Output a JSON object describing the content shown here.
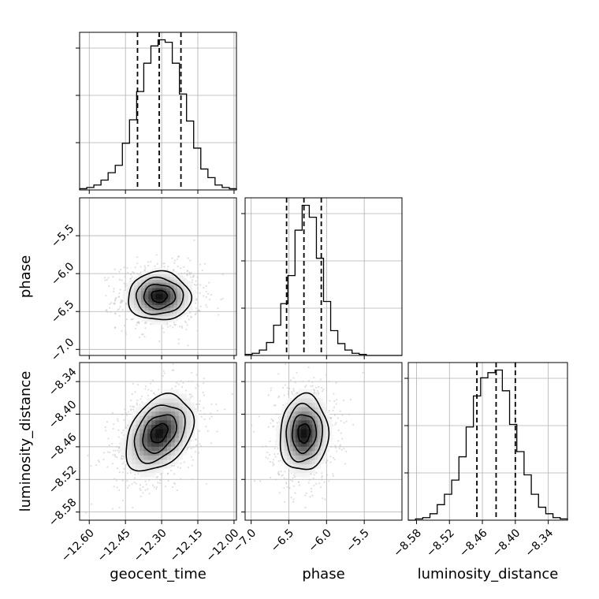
{
  "chart_data": {
    "type": "corner",
    "parameters": [
      "geocent_time",
      "phase",
      "luminosity_distance"
    ],
    "labels": {
      "geocent_time": "geocent_time",
      "phase": "phase",
      "luminosity_distance": "luminosity_distance"
    },
    "ranges": {
      "geocent_time": [
        -12.64,
        -11.99
      ],
      "phase": [
        -7.08,
        -5.0
      ],
      "luminosity_distance": [
        -8.595,
        -8.305
      ]
    },
    "ticks": {
      "geocent_time": [
        "-12.60",
        "-12.45",
        "-12.30",
        "-12.15",
        "-12.00"
      ],
      "phase": [
        "-7.0",
        "-6.5",
        "-6.0",
        "-5.5"
      ],
      "luminosity_distance": [
        "-8.58",
        "-8.52",
        "-8.46",
        "-8.40",
        "-8.34"
      ]
    },
    "quantiles": {
      "geocent_time": [
        -12.4,
        -12.31,
        -12.22
      ],
      "phase": [
        -6.53,
        -6.3,
        -6.07
      ],
      "luminosity_distance": [
        -8.47,
        -8.435,
        -8.4
      ]
    },
    "histograms": {
      "geocent_time": [
        1,
        2,
        4,
        8,
        14,
        20,
        38,
        57,
        80,
        103,
        117,
        122,
        120,
        103,
        78,
        56,
        34,
        17,
        10,
        4,
        2,
        1
      ],
      "phase": [
        1,
        2,
        5,
        12,
        28,
        48,
        74,
        116,
        139,
        128,
        90,
        50,
        23,
        11,
        5,
        2,
        1,
        0,
        0,
        0,
        0,
        0
      ],
      "luminosity_distance": [
        0,
        1,
        2,
        5,
        12,
        20,
        31,
        49,
        72,
        96,
        110,
        114,
        116,
        100,
        74,
        53,
        35,
        20,
        10,
        5,
        2,
        1
      ]
    },
    "contours": {
      "phase|geocent_time": {
        "center": [
          -12.31,
          -6.3
        ],
        "sigma": [
          0.065,
          0.16
        ],
        "rho": 0,
        "levels": [
          0.5,
          1.0,
          1.5,
          2.0
        ]
      },
      "luminosity_distance|geocent_time": {
        "center": [
          -12.31,
          -8.435
        ],
        "sigma": [
          0.07,
          0.035
        ],
        "rho": 0.35,
        "levels": [
          0.5,
          1.0,
          1.5,
          2.0
        ]
      },
      "luminosity_distance|phase": {
        "center": [
          -6.3,
          -8.435
        ],
        "sigma": [
          0.16,
          0.035
        ],
        "rho": 0.05,
        "levels": [
          0.5,
          1.0,
          1.5,
          2.0
        ]
      }
    },
    "grid": true,
    "colors": {
      "line": "#000000",
      "grid": "#b0b0b0",
      "points": "#bfbfbf"
    }
  }
}
